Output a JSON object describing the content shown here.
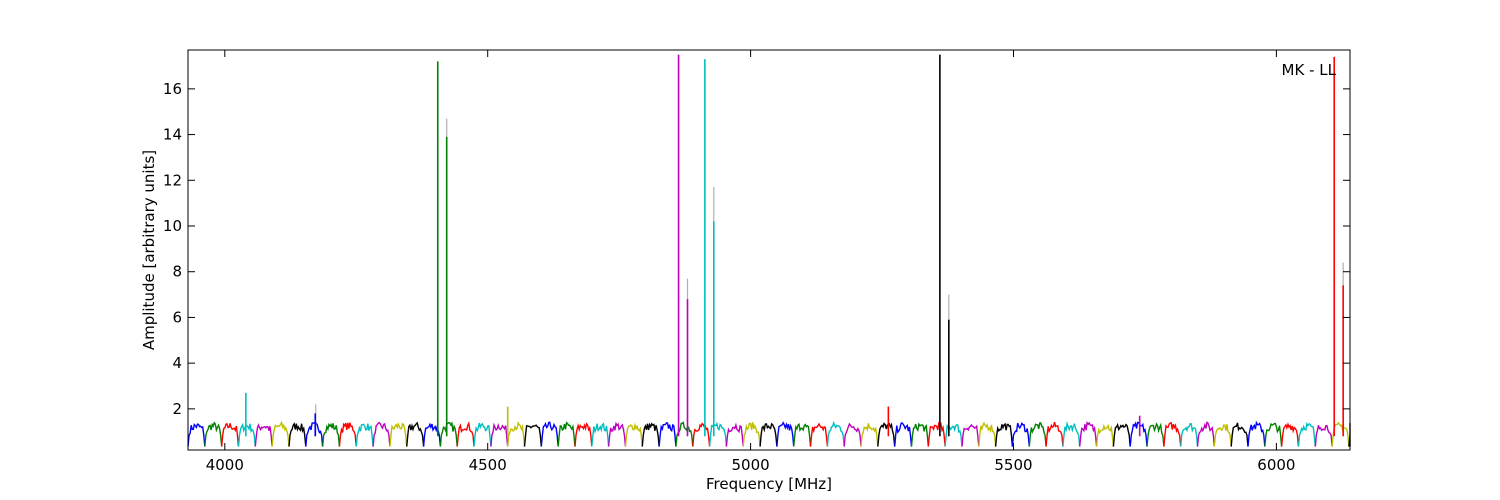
{
  "chart_data": {
    "type": "line",
    "title": "",
    "xlabel": "Frequency [MHz]",
    "ylabel": "Amplitude [arbitrary units]",
    "annotation": "MK - LL",
    "annotation_position": "top-right",
    "xlim": [
      3930,
      6140
    ],
    "ylim": [
      0.2,
      17.7
    ],
    "x_ticks": [
      4000,
      4500,
      5000,
      5500,
      6000
    ],
    "x_tick_labels": [
      "4000",
      "4500",
      "5000",
      "5500",
      "6000"
    ],
    "y_ticks": [
      2,
      4,
      6,
      8,
      10,
      12,
      14,
      16
    ],
    "y_tick_labels": [
      "2",
      "4",
      "6",
      "8",
      "10",
      "12",
      "14",
      "16"
    ],
    "grid": false,
    "legend": "none",
    "channel_width_mhz": 32,
    "channel_start_mhz": 3930,
    "channel_colors": [
      "#0000ff",
      "#008000",
      "#ff0000",
      "#00bfbf",
      "#bf00bf",
      "#bfbf00",
      "#000000"
    ],
    "spikes": [
      {
        "freq": 4040,
        "value": 2.7,
        "color": "#00bfbf"
      },
      {
        "freq": 4173,
        "value": 2.2,
        "color": "#b0b0b0"
      },
      {
        "freq": 4172,
        "value": 1.8,
        "color": "#0000ff"
      },
      {
        "freq": 4405,
        "value": 17.2,
        "color": "#008000"
      },
      {
        "freq": 4422,
        "value": 14.7,
        "color": "#b0b0b0"
      },
      {
        "freq": 4422,
        "value": 13.9,
        "color": "#008000"
      },
      {
        "freq": 4538,
        "value": 2.1,
        "color": "#bfbf00"
      },
      {
        "freq": 4863,
        "value": 17.5,
        "color": "#bf00bf"
      },
      {
        "freq": 4880,
        "value": 7.7,
        "color": "#b0b0b0"
      },
      {
        "freq": 4880,
        "value": 6.8,
        "color": "#bf00bf"
      },
      {
        "freq": 4913,
        "value": 17.3,
        "color": "#00bfbf"
      },
      {
        "freq": 4930,
        "value": 11.7,
        "color": "#b0b0b0"
      },
      {
        "freq": 4930,
        "value": 10.2,
        "color": "#00bfbf"
      },
      {
        "freq": 5262,
        "value": 2.1,
        "color": "#ff0000"
      },
      {
        "freq": 5360,
        "value": 17.5,
        "color": "#000000"
      },
      {
        "freq": 5377,
        "value": 7.0,
        "color": "#b0b0b0"
      },
      {
        "freq": 5377,
        "value": 5.9,
        "color": "#000000"
      },
      {
        "freq": 5740,
        "value": 1.7,
        "color": "#bf00bf"
      },
      {
        "freq": 6110,
        "value": 17.4,
        "color": "#ff0000"
      },
      {
        "freq": 6127,
        "value": 8.4,
        "color": "#b0b0b0"
      },
      {
        "freq": 6127,
        "value": 7.4,
        "color": "#ff0000"
      }
    ]
  }
}
